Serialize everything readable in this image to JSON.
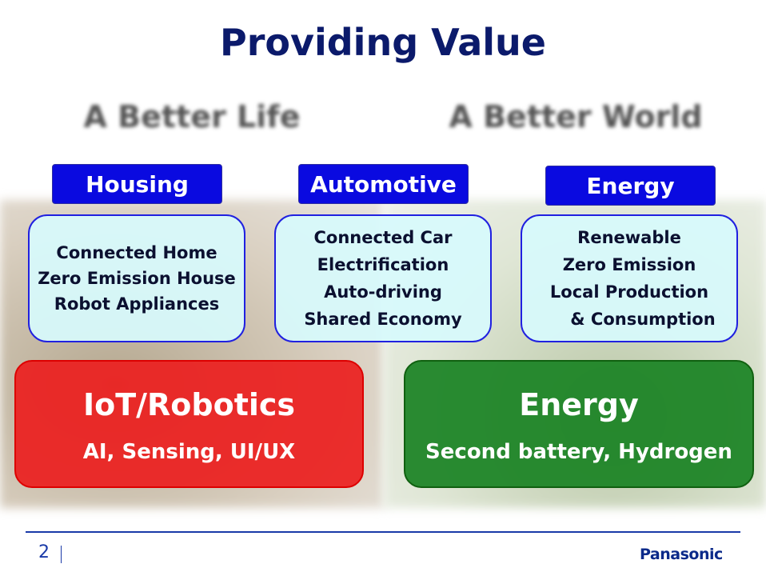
{
  "header": {
    "title": "Providing Value",
    "themes": [
      "A Better Life",
      "A Better World"
    ]
  },
  "categories": [
    {
      "label": "Housing",
      "items": [
        "Connected Home",
        "Zero Emission House",
        "Robot Appliances"
      ]
    },
    {
      "label": "Automotive",
      "items": [
        "Connected Car",
        "Electrification",
        "Auto-driving",
        "Shared Economy"
      ]
    },
    {
      "label": "Energy",
      "items": [
        "Renewable",
        "Zero Emission",
        "Local Production",
        "& Consumption"
      ]
    }
  ],
  "pillars": [
    {
      "title": "IoT/Robotics",
      "subtitle": "AI, Sensing, UI/UX"
    },
    {
      "title": "Energy",
      "subtitle": "Second battery, Hydrogen"
    }
  ],
  "footer": {
    "page": "2",
    "logo": "Panasonic"
  }
}
